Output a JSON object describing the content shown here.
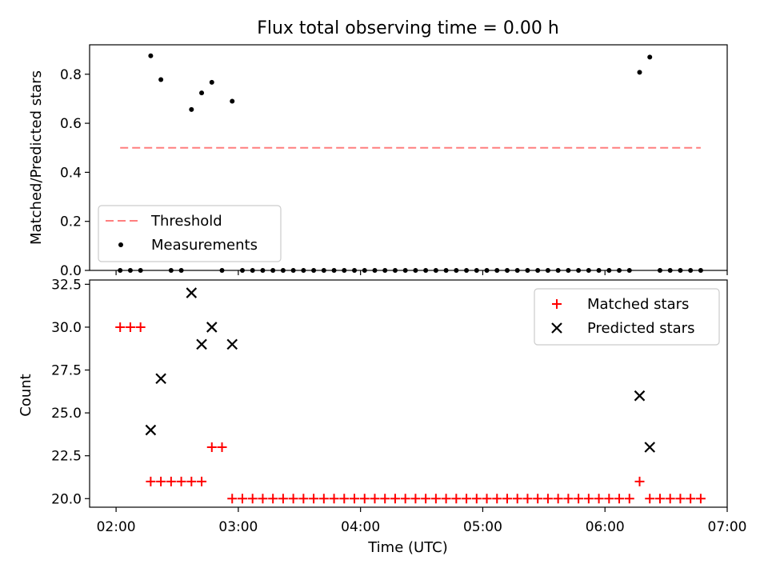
{
  "figure": {
    "title": "Flux total observing time = 0.00 h",
    "x_axis": {
      "label": "Time (UTC)",
      "ticks": [
        {
          "t": 2.0,
          "label": "02:00"
        },
        {
          "t": 3.0,
          "label": "03:00"
        },
        {
          "t": 4.0,
          "label": "04:00"
        },
        {
          "t": 5.0,
          "label": "05:00"
        },
        {
          "t": 6.0,
          "label": "06:00"
        },
        {
          "t": 7.0,
          "label": "07:00"
        }
      ]
    }
  },
  "chart_data": [
    {
      "type": "scatter",
      "panel": "top",
      "ylabel": "Matched/Predicted stars",
      "xlim": [
        "01:47",
        "07:00"
      ],
      "ylim": [
        0,
        0.92
      ],
      "yticks": [
        "0.0",
        "0.2",
        "0.4",
        "0.6",
        "0.8"
      ],
      "grid": false,
      "legend_position": "lower-left",
      "threshold": {
        "name": "Threshold",
        "value": 0.5,
        "x_start": "02:02",
        "x_end": "06:47",
        "color": "#ff7f7f",
        "style": "dashed"
      },
      "series": [
        {
          "name": "Measurements",
          "color": "#000000",
          "points": [
            [
              "02:02",
              0.0
            ],
            [
              "02:07",
              0.0
            ],
            [
              "02:12",
              0.0
            ],
            [
              "02:17",
              0.875
            ],
            [
              "02:22",
              0.778
            ],
            [
              "02:27",
              0.0
            ],
            [
              "02:32",
              0.0
            ],
            [
              "02:37",
              0.656
            ],
            [
              "02:42",
              0.724
            ],
            [
              "02:47",
              0.767
            ],
            [
              "02:52",
              0.0
            ],
            [
              "02:57",
              0.69
            ],
            [
              "03:02",
              0.0
            ],
            [
              "03:07",
              0.0
            ],
            [
              "03:12",
              0.0
            ],
            [
              "03:17",
              0.0
            ],
            [
              "03:22",
              0.0
            ],
            [
              "03:27",
              0.0
            ],
            [
              "03:32",
              0.0
            ],
            [
              "03:37",
              0.0
            ],
            [
              "03:42",
              0.0
            ],
            [
              "03:47",
              0.0
            ],
            [
              "03:52",
              0.0
            ],
            [
              "03:57",
              0.0
            ],
            [
              "04:02",
              0.0
            ],
            [
              "04:07",
              0.0
            ],
            [
              "04:12",
              0.0
            ],
            [
              "04:17",
              0.0
            ],
            [
              "04:22",
              0.0
            ],
            [
              "04:27",
              0.0
            ],
            [
              "04:32",
              0.0
            ],
            [
              "04:37",
              0.0
            ],
            [
              "04:42",
              0.0
            ],
            [
              "04:47",
              0.0
            ],
            [
              "04:52",
              0.0
            ],
            [
              "04:57",
              0.0
            ],
            [
              "05:02",
              0.0
            ],
            [
              "05:07",
              0.0
            ],
            [
              "05:12",
              0.0
            ],
            [
              "05:17",
              0.0
            ],
            [
              "05:22",
              0.0
            ],
            [
              "05:27",
              0.0
            ],
            [
              "05:32",
              0.0
            ],
            [
              "05:37",
              0.0
            ],
            [
              "05:42",
              0.0
            ],
            [
              "05:47",
              0.0
            ],
            [
              "05:52",
              0.0
            ],
            [
              "05:57",
              0.0
            ],
            [
              "06:02",
              0.0
            ],
            [
              "06:07",
              0.0
            ],
            [
              "06:12",
              0.0
            ],
            [
              "06:17",
              0.808
            ],
            [
              "06:22",
              0.87
            ],
            [
              "06:27",
              0.0
            ],
            [
              "06:32",
              0.0
            ],
            [
              "06:37",
              0.0
            ],
            [
              "06:42",
              0.0
            ],
            [
              "06:47",
              0.0
            ]
          ]
        }
      ]
    },
    {
      "type": "scatter",
      "panel": "bottom",
      "ylabel": "Count",
      "xlabel": "Time (UTC)",
      "xlim": [
        "01:47",
        "07:00"
      ],
      "ylim": [
        19.5,
        32.75
      ],
      "yticks": [
        "20.0",
        "22.5",
        "25.0",
        "27.5",
        "30.0",
        "32.5"
      ],
      "grid": false,
      "legend_position": "upper-right",
      "series": [
        {
          "name": "Matched stars",
          "marker": "plus",
          "color": "#ff0000",
          "points": [
            [
              "02:02",
              30
            ],
            [
              "02:07",
              30
            ],
            [
              "02:12",
              30
            ],
            [
              "02:17",
              21
            ],
            [
              "02:22",
              21
            ],
            [
              "02:27",
              21
            ],
            [
              "02:32",
              21
            ],
            [
              "02:37",
              21
            ],
            [
              "02:42",
              21
            ],
            [
              "02:47",
              23
            ],
            [
              "02:52",
              23
            ],
            [
              "02:57",
              20
            ],
            [
              "03:02",
              20
            ],
            [
              "03:07",
              20
            ],
            [
              "03:12",
              20
            ],
            [
              "03:17",
              20
            ],
            [
              "03:22",
              20
            ],
            [
              "03:27",
              20
            ],
            [
              "03:32",
              20
            ],
            [
              "03:37",
              20
            ],
            [
              "03:42",
              20
            ],
            [
              "03:47",
              20
            ],
            [
              "03:52",
              20
            ],
            [
              "03:57",
              20
            ],
            [
              "04:02",
              20
            ],
            [
              "04:07",
              20
            ],
            [
              "04:12",
              20
            ],
            [
              "04:17",
              20
            ],
            [
              "04:22",
              20
            ],
            [
              "04:27",
              20
            ],
            [
              "04:32",
              20
            ],
            [
              "04:37",
              20
            ],
            [
              "04:42",
              20
            ],
            [
              "04:47",
              20
            ],
            [
              "04:52",
              20
            ],
            [
              "04:57",
              20
            ],
            [
              "05:02",
              20
            ],
            [
              "05:07",
              20
            ],
            [
              "05:12",
              20
            ],
            [
              "05:17",
              20
            ],
            [
              "05:22",
              20
            ],
            [
              "05:27",
              20
            ],
            [
              "05:32",
              20
            ],
            [
              "05:37",
              20
            ],
            [
              "05:42",
              20
            ],
            [
              "05:47",
              20
            ],
            [
              "05:52",
              20
            ],
            [
              "05:57",
              20
            ],
            [
              "06:02",
              20
            ],
            [
              "06:07",
              20
            ],
            [
              "06:12",
              20
            ],
            [
              "06:17",
              21
            ],
            [
              "06:22",
              20
            ],
            [
              "06:27",
              20
            ],
            [
              "06:32",
              20
            ],
            [
              "06:37",
              20
            ],
            [
              "06:42",
              20
            ],
            [
              "06:47",
              20
            ]
          ]
        },
        {
          "name": "Predicted stars",
          "marker": "x",
          "color": "#000000",
          "points": [
            [
              "02:17",
              24
            ],
            [
              "02:22",
              27
            ],
            [
              "02:37",
              32
            ],
            [
              "02:42",
              29
            ],
            [
              "02:47",
              30
            ],
            [
              "02:57",
              29
            ],
            [
              "06:17",
              26
            ],
            [
              "06:22",
              23
            ]
          ]
        }
      ]
    }
  ]
}
